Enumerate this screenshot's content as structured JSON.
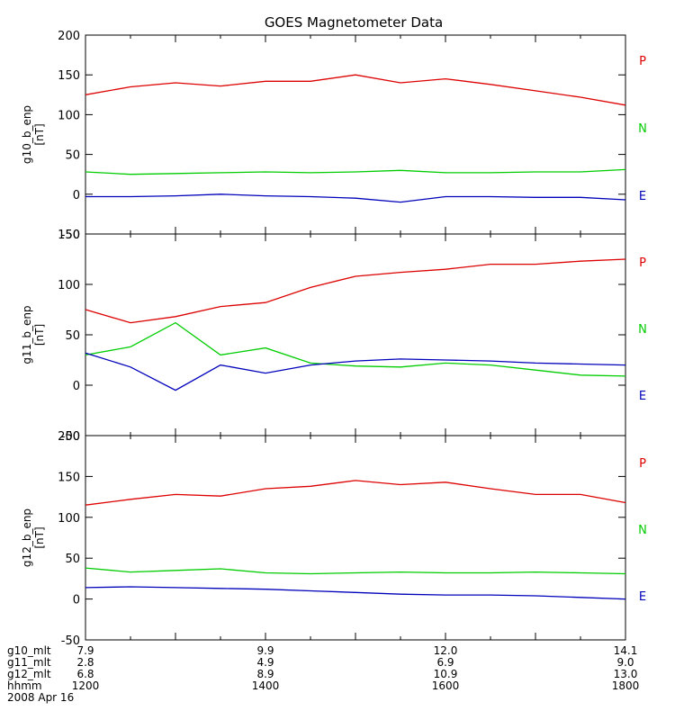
{
  "title": "GOES Magnetometer Data",
  "colors": {
    "P": "#dd0000",
    "N": "#00cc00",
    "E": "#0000bb",
    "axis": "#000000"
  },
  "chart_data": [
    {
      "type": "line",
      "ylabel": "g10_b_enp",
      "ylabel_unit": "[nT]",
      "ylim": [
        -50,
        200
      ],
      "yticks": [
        -50,
        0,
        50,
        100,
        150,
        200
      ],
      "x_range_hhmm": [
        1200,
        1800
      ],
      "legend": [
        "P",
        "N",
        "E"
      ],
      "series": [
        {
          "name": "P",
          "x": [
            "1200",
            "1230",
            "1300",
            "1330",
            "1400",
            "1430",
            "1500",
            "1530",
            "1600",
            "1630",
            "1700",
            "1730",
            "1800"
          ],
          "values": [
            125,
            135,
            140,
            136,
            142,
            142,
            150,
            140,
            145,
            138,
            130,
            122,
            112
          ]
        },
        {
          "name": "N",
          "x": [
            "1200",
            "1230",
            "1300",
            "1330",
            "1400",
            "1430",
            "1500",
            "1530",
            "1600",
            "1630",
            "1700",
            "1730",
            "1800"
          ],
          "values": [
            28,
            25,
            26,
            27,
            28,
            27,
            28,
            30,
            27,
            27,
            28,
            28,
            31
          ]
        },
        {
          "name": "E",
          "x": [
            "1200",
            "1230",
            "1300",
            "1330",
            "1400",
            "1430",
            "1500",
            "1530",
            "1600",
            "1630",
            "1700",
            "1730",
            "1800"
          ],
          "values": [
            -3,
            -3,
            -2,
            0,
            -2,
            -3,
            -5,
            -10,
            -3,
            -3,
            -4,
            -4,
            -7
          ]
        }
      ]
    },
    {
      "type": "line",
      "ylabel": "g11_b_enp",
      "ylabel_unit": "[nT]",
      "ylim": [
        -50,
        150
      ],
      "yticks": [
        -50,
        0,
        50,
        100,
        150
      ],
      "x_range_hhmm": [
        1200,
        1800
      ],
      "legend": [
        "P",
        "N",
        "E"
      ],
      "series": [
        {
          "name": "P",
          "x": [
            "1200",
            "1230",
            "1300",
            "1330",
            "1400",
            "1430",
            "1500",
            "1530",
            "1600",
            "1630",
            "1700",
            "1730",
            "1800"
          ],
          "values": [
            75,
            62,
            68,
            78,
            82,
            97,
            108,
            112,
            115,
            120,
            120,
            123,
            125
          ]
        },
        {
          "name": "N",
          "x": [
            "1200",
            "1230",
            "1300",
            "1330",
            "1400",
            "1430",
            "1500",
            "1530",
            "1600",
            "1630",
            "1700",
            "1730",
            "1800"
          ],
          "values": [
            30,
            38,
            62,
            30,
            37,
            22,
            19,
            18,
            22,
            20,
            15,
            10,
            9
          ]
        },
        {
          "name": "E",
          "x": [
            "1200",
            "1230",
            "1300",
            "1330",
            "1400",
            "1430",
            "1500",
            "1530",
            "1600",
            "1630",
            "1700",
            "1730",
            "1800"
          ],
          "values": [
            32,
            18,
            -5,
            20,
            12,
            20,
            24,
            26,
            25,
            24,
            22,
            21,
            20
          ]
        }
      ]
    },
    {
      "type": "line",
      "ylabel": "g12_b_enp",
      "ylabel_unit": "[nT]",
      "ylim": [
        -50,
        200
      ],
      "yticks": [
        -50,
        0,
        50,
        100,
        150,
        200
      ],
      "x_range_hhmm": [
        1200,
        1800
      ],
      "legend": [
        "P",
        "N",
        "E"
      ],
      "series": [
        {
          "name": "P",
          "x": [
            "1200",
            "1230",
            "1300",
            "1330",
            "1400",
            "1430",
            "1500",
            "1530",
            "1600",
            "1630",
            "1700",
            "1730",
            "1800"
          ],
          "values": [
            115,
            122,
            128,
            126,
            135,
            138,
            145,
            140,
            143,
            135,
            128,
            128,
            118
          ]
        },
        {
          "name": "N",
          "x": [
            "1200",
            "1230",
            "1300",
            "1330",
            "1400",
            "1430",
            "1500",
            "1530",
            "1600",
            "1630",
            "1700",
            "1730",
            "1800"
          ],
          "values": [
            38,
            33,
            35,
            37,
            32,
            31,
            32,
            33,
            32,
            32,
            33,
            32,
            31
          ]
        },
        {
          "name": "E",
          "x": [
            "1200",
            "1230",
            "1300",
            "1330",
            "1400",
            "1430",
            "1500",
            "1530",
            "1600",
            "1630",
            "1700",
            "1730",
            "1800"
          ],
          "values": [
            14,
            15,
            14,
            13,
            12,
            10,
            8,
            6,
            5,
            5,
            4,
            2,
            0
          ]
        }
      ]
    }
  ],
  "footer": {
    "rows": [
      {
        "label": "g10_mlt",
        "values": [
          "7.9",
          "9.9",
          "12.0",
          "14.1"
        ]
      },
      {
        "label": "g11_mlt",
        "values": [
          "2.8",
          "4.9",
          "6.9",
          "9.0"
        ]
      },
      {
        "label": "g12_mlt",
        "values": [
          "6.8",
          "8.9",
          "10.9",
          "13.0"
        ]
      },
      {
        "label": "hhmm",
        "values": [
          "1200",
          "1400",
          "1600",
          "1800"
        ]
      }
    ],
    "date": "2008 Apr 16"
  }
}
